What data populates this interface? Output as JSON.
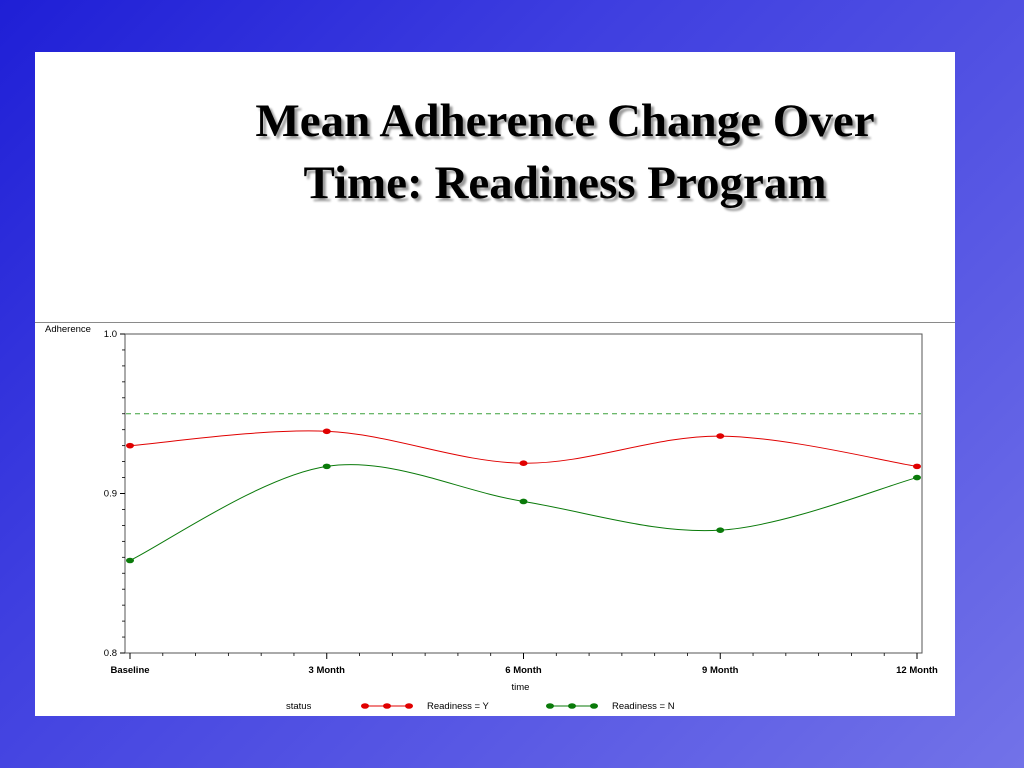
{
  "slide": {
    "title_line1": "Mean Adherence Change Over",
    "title_line2": "Time: Readiness Program"
  },
  "chart_data": {
    "type": "line",
    "ylabel": "Adherence",
    "xlabel": "time",
    "categories": [
      "Baseline",
      "3  Month",
      "6  Month",
      "9  Month",
      "12  Month"
    ],
    "ylim": [
      0.8,
      1.0
    ],
    "yticks": [
      {
        "value": 0.8,
        "label": "0.8"
      },
      {
        "value": 0.9,
        "label": "0.9"
      },
      {
        "value": 1.0,
        "label": "1.0"
      }
    ],
    "reference_line": {
      "value": 0.95,
      "color": "#3aa03a",
      "style": "dashed"
    },
    "legend": {
      "title": "status",
      "placement": "bottom"
    },
    "series": [
      {
        "name": "Readiness = Y",
        "color": "#e00000",
        "values": [
          0.93,
          0.939,
          0.919,
          0.936,
          0.917
        ]
      },
      {
        "name": "Readiness = N",
        "color": "#0a7a0a",
        "values": [
          0.858,
          0.917,
          0.895,
          0.877,
          0.91
        ]
      }
    ],
    "grid": false
  }
}
